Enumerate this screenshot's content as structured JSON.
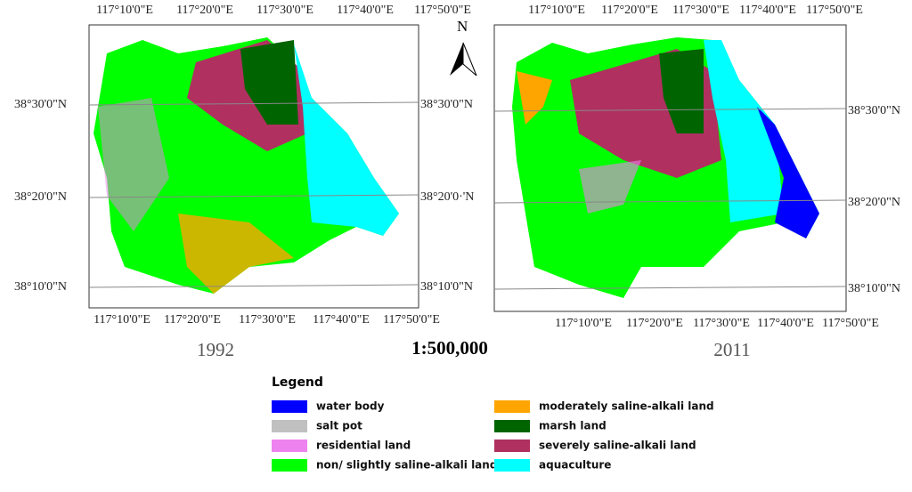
{
  "maps": [
    {
      "year": "1992",
      "top_labels": [
        "117°10'0\"E",
        "117°20'0\"E",
        "117°30'0\"E",
        "117°40'0\"E",
        "117°50'0\"E"
      ],
      "bottom_labels": [
        "117°10'0\"E",
        "117°20'0\"E",
        "117°30'0\"E",
        "117°40'0\"E",
        "117°50'0\"E"
      ],
      "left_labels": [
        "38°30'0\"N",
        "38°20'0\"N",
        "38°10'0\"N"
      ],
      "right_labels": [
        "38°30'0\"N",
        "38°20'0·'N",
        "38°10'0\"N"
      ]
    },
    {
      "year": "2011",
      "top_labels": [
        "117°10'0\"E",
        "117°20'0\"E",
        "117°30'0\"E",
        "117°40'0\"E",
        "117°50'0\"E"
      ],
      "bottom_labels": [
        "117°10'0\"E",
        "117°20'0\"E",
        "117°30'0\"E",
        "117°40'0\"E",
        "117°50'0\"E"
      ],
      "right_labels": [
        "38°30'0\"N",
        "38°20'0\"N",
        "38°10'0\"N"
      ]
    }
  ],
  "north": "N",
  "scale": "1:500,000",
  "legend": {
    "title": "Legend",
    "items": [
      {
        "label": "water body",
        "color": "#0000ff"
      },
      {
        "label": "salt pot",
        "color": "#c0c0c0"
      },
      {
        "label": "residential land",
        "color": "#ee82ee"
      },
      {
        "label": "non/ slightly saline-alkali land",
        "color": "#00ff00"
      },
      {
        "label": "moderately saline-alkali land",
        "color": "#ffa500"
      },
      {
        "label": "marsh land",
        "color": "#006400"
      },
      {
        "label": "severely saline-alkali land",
        "color": "#b03060"
      },
      {
        "label": "aquaculture",
        "color": "#00ffff"
      }
    ]
  }
}
